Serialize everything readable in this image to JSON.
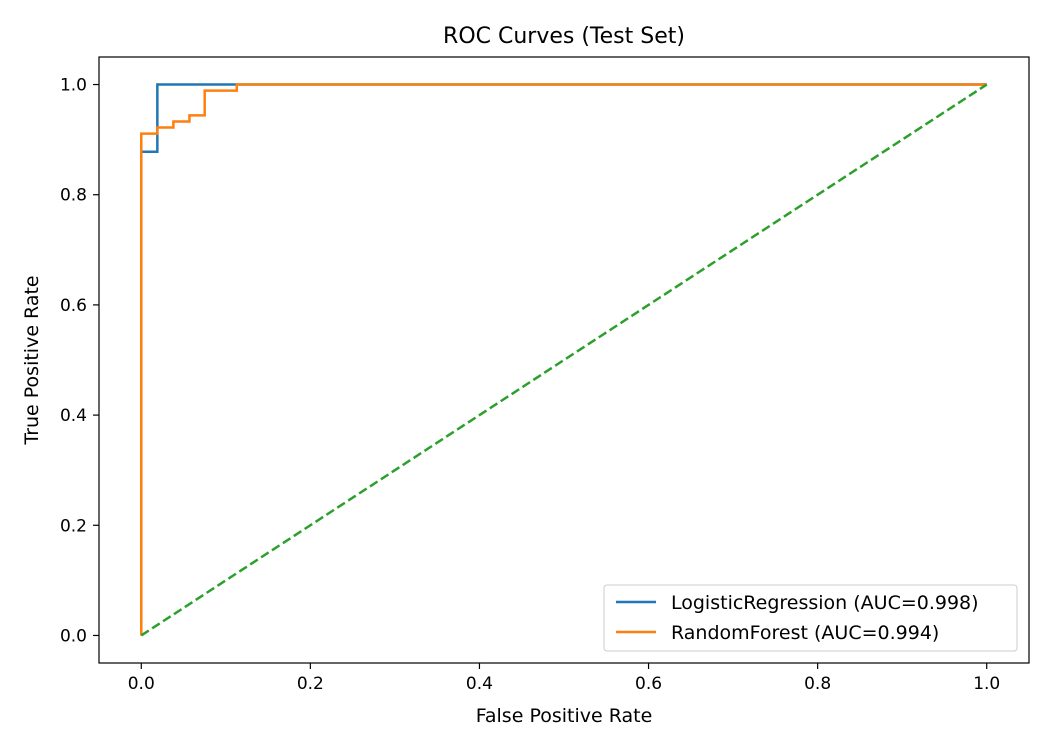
{
  "chart_data": {
    "type": "line",
    "title": "ROC Curves (Test Set)",
    "xlabel": "False Positive Rate",
    "ylabel": "True Positive Rate",
    "xlim": [
      -0.05,
      1.05
    ],
    "ylim": [
      -0.05,
      1.05
    ],
    "xticks": [
      0.0,
      0.2,
      0.4,
      0.6,
      0.8,
      1.0
    ],
    "yticks": [
      0.0,
      0.2,
      0.4,
      0.6,
      0.8,
      1.0
    ],
    "xtick_labels": [
      "0.0",
      "0.2",
      "0.4",
      "0.6",
      "0.8",
      "1.0"
    ],
    "ytick_labels": [
      "0.0",
      "0.2",
      "0.4",
      "0.6",
      "0.8",
      "1.0"
    ],
    "grid": false,
    "legend_position": "lower-right",
    "series": [
      {
        "name": "LogisticRegression (AUC=0.998)",
        "color": "#1f77b4",
        "style": "solid",
        "x": [
          0.0,
          0.0,
          0.019,
          0.019,
          0.113,
          1.0
        ],
        "y": [
          0.0,
          0.878,
          0.878,
          1.0,
          1.0,
          1.0
        ]
      },
      {
        "name": "RandomForest (AUC=0.994)",
        "color": "#ff7f0e",
        "style": "solid",
        "x": [
          0.0,
          0.0,
          0.019,
          0.019,
          0.038,
          0.038,
          0.057,
          0.057,
          0.075,
          0.075,
          0.113,
          0.113,
          1.0
        ],
        "y": [
          0.0,
          0.911,
          0.911,
          0.922,
          0.922,
          0.933,
          0.933,
          0.944,
          0.944,
          0.989,
          0.989,
          1.0,
          1.0
        ]
      },
      {
        "name": "",
        "color": "#2ca02c",
        "style": "dashed",
        "x": [
          0.0,
          1.0
        ],
        "y": [
          0.0,
          1.0
        ]
      }
    ]
  }
}
